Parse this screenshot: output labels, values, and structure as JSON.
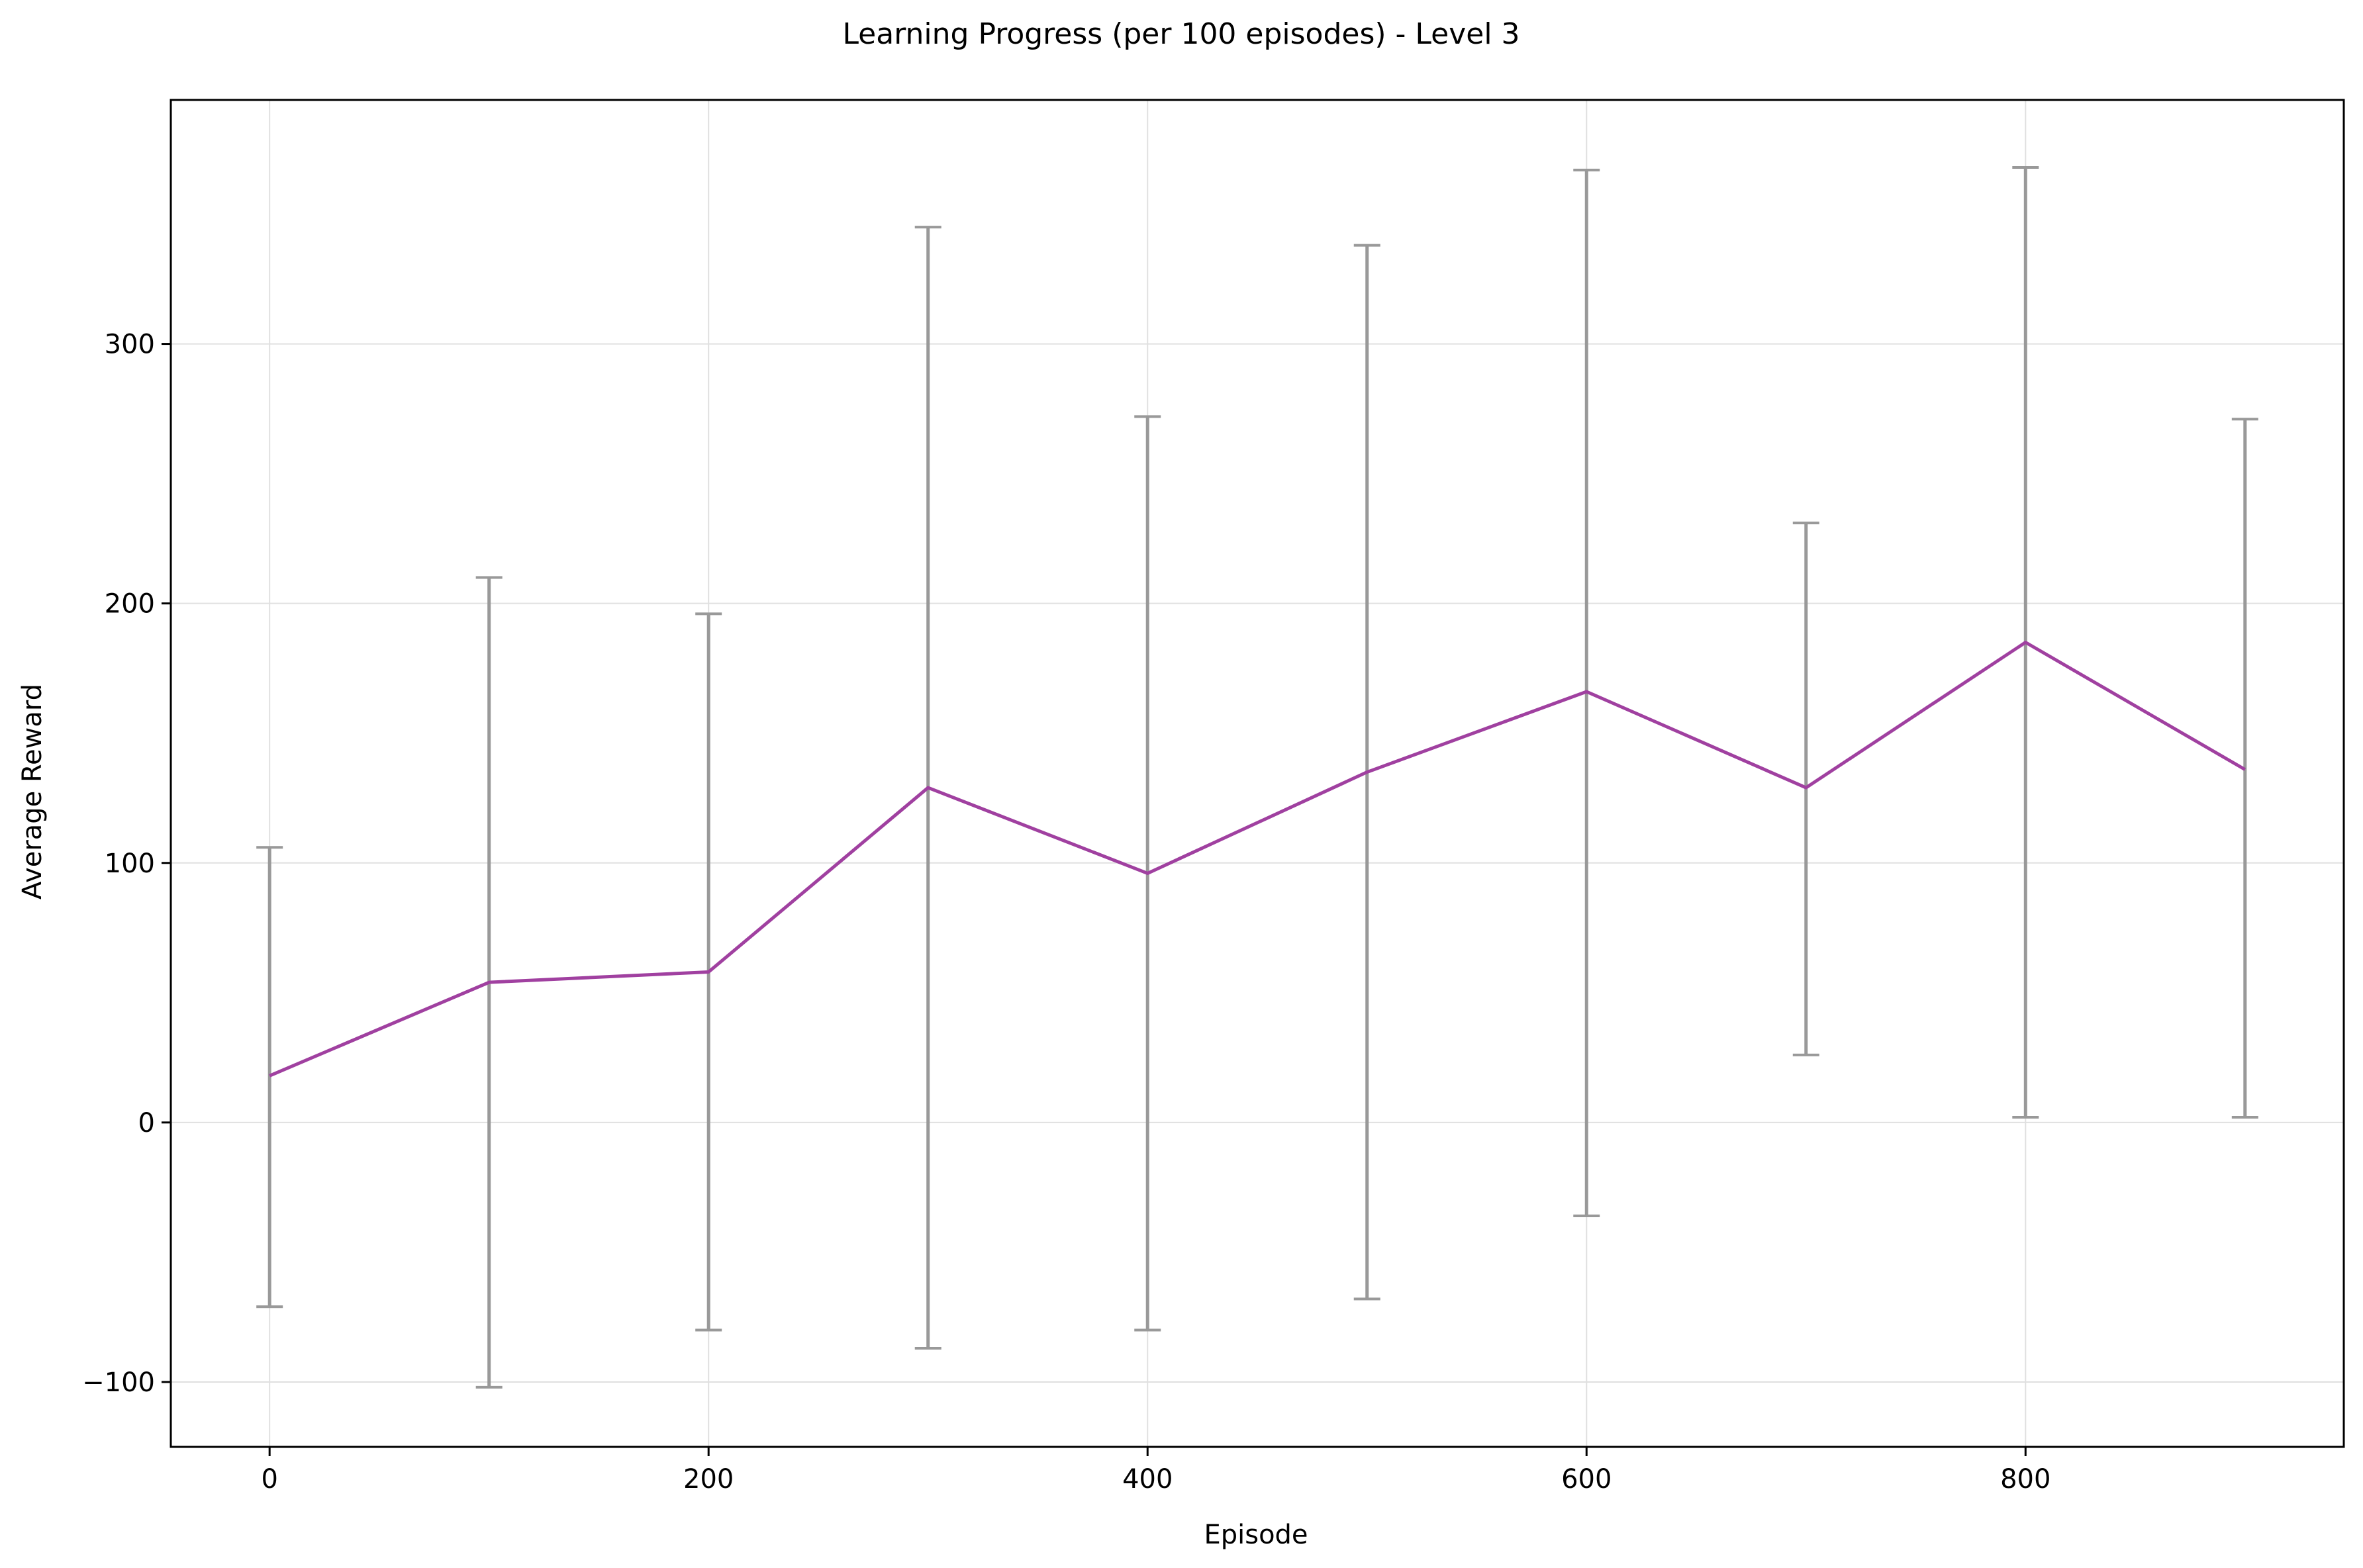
{
  "chart_data": {
    "type": "line",
    "title": "Learning Progress (per 100 episodes) - Level 3",
    "xlabel": "Episode",
    "ylabel": "Average Reward",
    "xlim": [
      -45,
      945
    ],
    "ylim": [
      -125,
      394
    ],
    "x_ticks": [
      0,
      200,
      400,
      600,
      800
    ],
    "y_ticks": [
      -100,
      0,
      100,
      200,
      300
    ],
    "y_tick_labels": [
      "−100",
      "0",
      "100",
      "200",
      "300"
    ],
    "grid": true,
    "line_color": "#a040a0",
    "error_color": "#999999",
    "x": [
      0,
      100,
      200,
      300,
      400,
      500,
      600,
      700,
      800,
      900
    ],
    "series": [
      {
        "values": [
          18,
          54,
          58,
          129,
          96,
          135,
          166,
          129,
          185,
          136
        ],
        "error_low": [
          -71,
          -102,
          -80,
          -87,
          -80,
          -68,
          -36,
          26,
          2,
          2
        ],
        "error_high": [
          106,
          210,
          196,
          345,
          272,
          338,
          367,
          231,
          368,
          271
        ]
      }
    ]
  }
}
